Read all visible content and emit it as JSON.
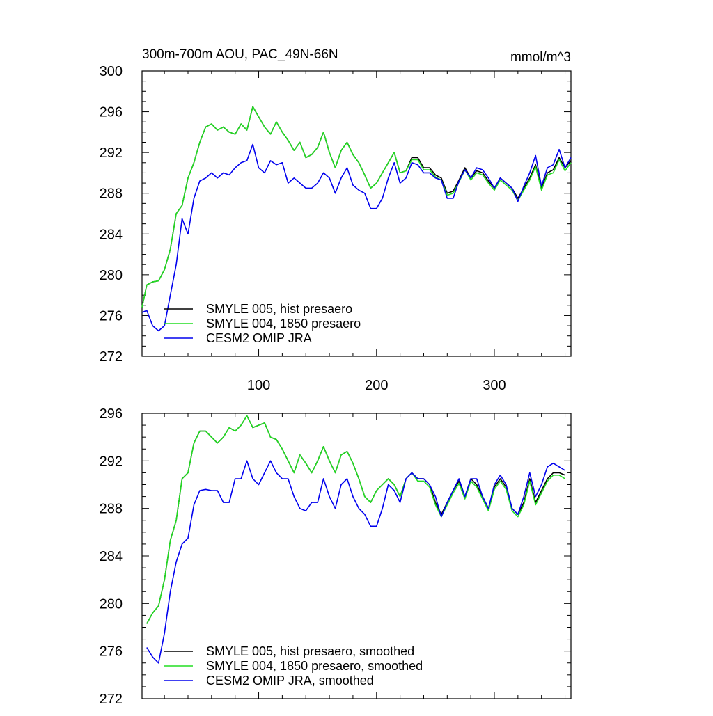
{
  "top_title": "300m-700m AOU, PAC_49N-66N",
  "units": "mmol/m^3",
  "chart_data": [
    {
      "type": "line",
      "name": "raw",
      "xlim": [
        1,
        365
      ],
      "ylim": [
        272,
        300
      ],
      "x_ticks": [
        100,
        200,
        300
      ],
      "y_ticks": [
        272,
        276,
        280,
        284,
        288,
        292,
        296,
        300
      ],
      "legend_position": "bottom-left",
      "legend": [
        "SMYLE 005, hist presaero",
        "SMYLE 004, 1850 presaero",
        "CESM2 OMIP JRA"
      ],
      "series": [
        {
          "name": "SMYLE 005, hist presaero",
          "color": "#000000",
          "x": [
            1,
            5,
            10,
            15,
            20,
            25,
            30,
            35,
            40,
            45,
            50,
            55,
            60,
            65,
            70,
            75,
            80,
            85,
            90,
            95,
            100,
            105,
            110,
            115,
            120,
            125,
            130,
            135,
            140,
            145,
            150,
            155,
            160,
            165,
            170,
            175,
            180,
            185,
            190,
            195,
            200,
            205,
            210,
            215,
            220,
            225,
            230,
            235,
            240,
            245,
            250,
            255,
            260,
            265,
            270,
            275,
            280,
            285,
            290,
            295,
            300,
            305,
            310,
            315,
            320,
            325,
            330,
            335,
            340,
            345,
            350,
            355,
            360,
            365
          ],
          "y": [
            276.8,
            279.0,
            279.3,
            279.4,
            280.5,
            282.5,
            286.0,
            286.8,
            289.5,
            291.0,
            293.0,
            294.5,
            294.8,
            294.2,
            294.5,
            294.0,
            293.8,
            294.8,
            294.2,
            296.5,
            295.5,
            294.5,
            293.8,
            295.0,
            294.0,
            293.2,
            292.2,
            293.0,
            291.5,
            291.8,
            292.5,
            294.0,
            292.0,
            290.5,
            292.2,
            293.0,
            291.8,
            291.0,
            289.8,
            288.5,
            289.0,
            290.0,
            291.0,
            292.0,
            290.0,
            290.2,
            291.5,
            291.5,
            290.5,
            290.5,
            289.8,
            289.5,
            288.0,
            288.2,
            289.3,
            290.5,
            289.5,
            290.2,
            290.0,
            289.2,
            288.5,
            289.5,
            289.0,
            288.5,
            287.5,
            288.5,
            289.5,
            290.8,
            288.5,
            290.0,
            290.3,
            291.5,
            290.5,
            291.2
          ]
        },
        {
          "name": "SMYLE 004, 1850 presaero",
          "color": "#22dd22",
          "x": [
            1,
            5,
            10,
            15,
            20,
            25,
            30,
            35,
            40,
            45,
            50,
            55,
            60,
            65,
            70,
            75,
            80,
            85,
            90,
            95,
            100,
            105,
            110,
            115,
            120,
            125,
            130,
            135,
            140,
            145,
            150,
            155,
            160,
            165,
            170,
            175,
            180,
            185,
            190,
            195,
            200,
            205,
            210,
            215,
            220,
            225,
            230,
            235,
            240,
            245,
            250,
            255,
            260,
            265,
            270,
            275,
            280,
            285,
            290,
            295,
            300,
            305,
            310,
            315,
            320,
            325,
            330,
            335,
            340,
            345,
            350,
            355,
            360,
            365
          ],
          "y": [
            276.8,
            279.0,
            279.3,
            279.4,
            280.5,
            282.5,
            286.0,
            286.8,
            289.5,
            291.0,
            293.0,
            294.5,
            294.8,
            294.2,
            294.5,
            294.0,
            293.8,
            294.8,
            294.2,
            296.5,
            295.5,
            294.5,
            293.8,
            295.0,
            294.0,
            293.2,
            292.2,
            293.0,
            291.5,
            291.8,
            292.5,
            294.0,
            292.0,
            290.5,
            292.2,
            293.0,
            291.8,
            291.0,
            289.8,
            288.5,
            289.0,
            290.0,
            291.0,
            292.0,
            290.0,
            290.2,
            291.3,
            291.3,
            290.3,
            290.3,
            289.6,
            289.3,
            287.8,
            288.0,
            289.1,
            290.3,
            289.3,
            290.0,
            289.8,
            289.0,
            288.3,
            289.3,
            288.8,
            288.3,
            287.3,
            288.3,
            289.3,
            290.6,
            288.3,
            289.8,
            290.0,
            291.3,
            290.2,
            291.0
          ]
        },
        {
          "name": "CESM2 OMIP JRA",
          "color": "#0000ee",
          "x": [
            1,
            5,
            10,
            15,
            20,
            25,
            30,
            35,
            40,
            45,
            50,
            55,
            60,
            65,
            70,
            75,
            80,
            85,
            90,
            95,
            100,
            105,
            110,
            115,
            120,
            125,
            130,
            135,
            140,
            145,
            150,
            155,
            160,
            165,
            170,
            175,
            180,
            185,
            190,
            195,
            200,
            205,
            210,
            215,
            220,
            225,
            230,
            235,
            240,
            245,
            250,
            255,
            260,
            265,
            270,
            275,
            280,
            285,
            290,
            295,
            300,
            305,
            310,
            315,
            320,
            325,
            330,
            335,
            340,
            345,
            350,
            355,
            360,
            365
          ],
          "y": [
            276.3,
            276.5,
            275.0,
            274.5,
            275.0,
            278.0,
            281.0,
            285.5,
            284.0,
            287.5,
            289.2,
            289.5,
            290.0,
            289.5,
            290.0,
            289.8,
            290.5,
            291.0,
            291.2,
            292.8,
            290.5,
            290.0,
            291.2,
            290.8,
            291.0,
            289.0,
            289.5,
            289.0,
            288.5,
            288.5,
            289.0,
            290.0,
            289.5,
            288.0,
            289.5,
            290.5,
            288.8,
            288.3,
            288.0,
            286.5,
            286.5,
            287.5,
            289.5,
            291.0,
            289.0,
            289.5,
            291.0,
            290.8,
            290.0,
            290.0,
            289.5,
            289.3,
            287.5,
            287.5,
            289.2,
            290.3,
            289.5,
            290.5,
            290.3,
            289.5,
            288.5,
            289.5,
            289.0,
            288.5,
            287.2,
            288.7,
            290.0,
            291.7,
            288.7,
            290.5,
            290.8,
            292.3,
            290.5,
            291.5
          ]
        }
      ]
    },
    {
      "type": "line",
      "name": "smoothed",
      "xlim": [
        1,
        365
      ],
      "ylim": [
        272,
        296
      ],
      "x_ticks": [
        100,
        200,
        300
      ],
      "y_ticks": [
        272,
        276,
        280,
        284,
        288,
        292,
        296
      ],
      "legend_position": "bottom-left",
      "legend": [
        "SMYLE 005, hist presaero, smoothed",
        "SMYLE 004, 1850 presaero, smoothed",
        "CESM2 OMIP JRA, smoothed"
      ],
      "series": [
        {
          "name": "SMYLE 005, hist presaero, smoothed",
          "color": "#000000",
          "x": [
            5,
            10,
            15,
            20,
            25,
            30,
            35,
            40,
            45,
            50,
            55,
            60,
            65,
            70,
            75,
            80,
            85,
            90,
            95,
            100,
            105,
            110,
            115,
            120,
            125,
            130,
            135,
            140,
            145,
            150,
            155,
            160,
            165,
            170,
            175,
            180,
            185,
            190,
            195,
            200,
            205,
            210,
            215,
            220,
            225,
            230,
            235,
            240,
            245,
            250,
            255,
            260,
            265,
            270,
            275,
            280,
            285,
            290,
            295,
            300,
            305,
            310,
            315,
            320,
            325,
            330,
            335,
            340,
            345,
            350,
            355,
            360
          ],
          "y": [
            278.3,
            279.2,
            279.8,
            282.0,
            285.3,
            287.0,
            290.5,
            291.0,
            293.5,
            294.5,
            294.5,
            294.0,
            293.5,
            294.0,
            294.8,
            294.5,
            295.0,
            295.8,
            294.8,
            295.0,
            295.2,
            294.0,
            293.8,
            293.0,
            292.0,
            291.0,
            292.5,
            291.8,
            291.0,
            292.0,
            293.2,
            292.0,
            291.0,
            292.5,
            292.8,
            291.8,
            290.5,
            289.0,
            288.5,
            289.5,
            290.0,
            290.5,
            290.0,
            289.0,
            290.5,
            291.0,
            290.5,
            290.5,
            290.0,
            288.5,
            287.5,
            288.5,
            289.5,
            290.3,
            289.0,
            290.5,
            290.0,
            289.0,
            288.0,
            289.8,
            290.5,
            289.8,
            288.0,
            287.5,
            288.5,
            290.5,
            288.5,
            289.5,
            290.5,
            291.0,
            291.0,
            290.8
          ]
        },
        {
          "name": "SMYLE 004, 1850 presaero, smoothed",
          "color": "#22dd22",
          "x": [
            5,
            10,
            15,
            20,
            25,
            30,
            35,
            40,
            45,
            50,
            55,
            60,
            65,
            70,
            75,
            80,
            85,
            90,
            95,
            100,
            105,
            110,
            115,
            120,
            125,
            130,
            135,
            140,
            145,
            150,
            155,
            160,
            165,
            170,
            175,
            180,
            185,
            190,
            195,
            200,
            205,
            210,
            215,
            220,
            225,
            230,
            235,
            240,
            245,
            250,
            255,
            260,
            265,
            270,
            275,
            280,
            285,
            290,
            295,
            300,
            305,
            310,
            315,
            320,
            325,
            330,
            335,
            340,
            345,
            350,
            355,
            360
          ],
          "y": [
            278.3,
            279.2,
            279.8,
            282.0,
            285.3,
            287.0,
            290.5,
            291.0,
            293.5,
            294.5,
            294.5,
            294.0,
            293.5,
            294.0,
            294.8,
            294.5,
            295.0,
            295.8,
            294.8,
            295.0,
            295.2,
            294.0,
            293.8,
            293.0,
            292.0,
            291.0,
            292.5,
            291.8,
            291.0,
            292.0,
            293.2,
            292.0,
            291.0,
            292.5,
            292.8,
            291.8,
            290.5,
            289.0,
            288.5,
            289.5,
            290.0,
            290.5,
            290.0,
            289.0,
            290.5,
            291.0,
            290.3,
            290.3,
            289.8,
            288.3,
            287.3,
            288.3,
            289.3,
            290.1,
            288.8,
            290.3,
            289.8,
            288.8,
            287.8,
            289.6,
            290.3,
            289.6,
            287.8,
            287.3,
            288.3,
            290.3,
            288.3,
            289.3,
            290.3,
            290.8,
            290.8,
            290.5
          ]
        },
        {
          "name": "CESM2 OMIP JRA, smoothed",
          "color": "#0000ee",
          "x": [
            5,
            10,
            15,
            20,
            25,
            30,
            35,
            40,
            45,
            50,
            55,
            60,
            65,
            70,
            75,
            80,
            85,
            90,
            95,
            100,
            105,
            110,
            115,
            120,
            125,
            130,
            135,
            140,
            145,
            150,
            155,
            160,
            165,
            170,
            175,
            180,
            185,
            190,
            195,
            200,
            205,
            210,
            215,
            220,
            225,
            230,
            235,
            240,
            245,
            250,
            255,
            260,
            265,
            270,
            275,
            280,
            285,
            290,
            295,
            300,
            305,
            310,
            315,
            320,
            325,
            330,
            335,
            340,
            345,
            350,
            355,
            360
          ],
          "y": [
            276.3,
            275.5,
            275.0,
            277.5,
            281.0,
            283.5,
            285.0,
            285.5,
            288.3,
            289.5,
            289.6,
            289.5,
            289.5,
            288.5,
            288.5,
            290.5,
            290.5,
            292.0,
            290.5,
            290.0,
            291.0,
            292.0,
            291.0,
            290.5,
            290.5,
            289.0,
            288.0,
            287.8,
            288.5,
            288.5,
            290.5,
            289.0,
            288.0,
            290.0,
            290.5,
            289.0,
            288.0,
            287.5,
            286.5,
            286.5,
            288.0,
            290.0,
            289.5,
            288.5,
            290.5,
            291.0,
            290.5,
            290.5,
            290.0,
            289.0,
            287.3,
            288.5,
            289.5,
            290.5,
            289.0,
            290.5,
            290.5,
            289.0,
            288.0,
            290.0,
            290.8,
            290.0,
            288.0,
            287.5,
            289.0,
            291.0,
            289.0,
            290.0,
            291.5,
            291.8,
            291.5,
            291.2
          ]
        }
      ]
    }
  ]
}
